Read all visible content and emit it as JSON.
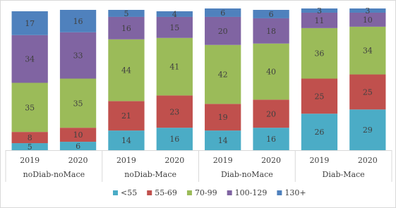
{
  "chart_data": {
    "type": "stacked_bar",
    "categories": [
      "2019",
      "2020",
      "2019",
      "2020",
      "2019",
      "2020",
      "2019",
      "2020"
    ],
    "groups": [
      "noDiab-noMace",
      "noDiab-Mace",
      "Diab-noMace",
      "Diab-Mace"
    ],
    "ylim": [
      0,
      100
    ],
    "series": [
      {
        "name": "<55",
        "color": "#4bacc6",
        "values": [
          5,
          6,
          14,
          16,
          14,
          16,
          26,
          29
        ]
      },
      {
        "name": "55-69",
        "color": "#c0504d",
        "values": [
          8,
          10,
          21,
          23,
          19,
          20,
          25,
          25
        ]
      },
      {
        "name": "70-99",
        "color": "#9bbb59",
        "values": [
          35,
          35,
          44,
          41,
          42,
          40,
          36,
          34
        ]
      },
      {
        "name": "100-129",
        "color": "#8064a2",
        "values": [
          34,
          33,
          16,
          15,
          20,
          18,
          11,
          10
        ]
      },
      {
        "name": "130+",
        "color": "#4f81bd",
        "values": [
          17,
          16,
          5,
          4,
          6,
          6,
          3,
          3
        ]
      }
    ]
  }
}
